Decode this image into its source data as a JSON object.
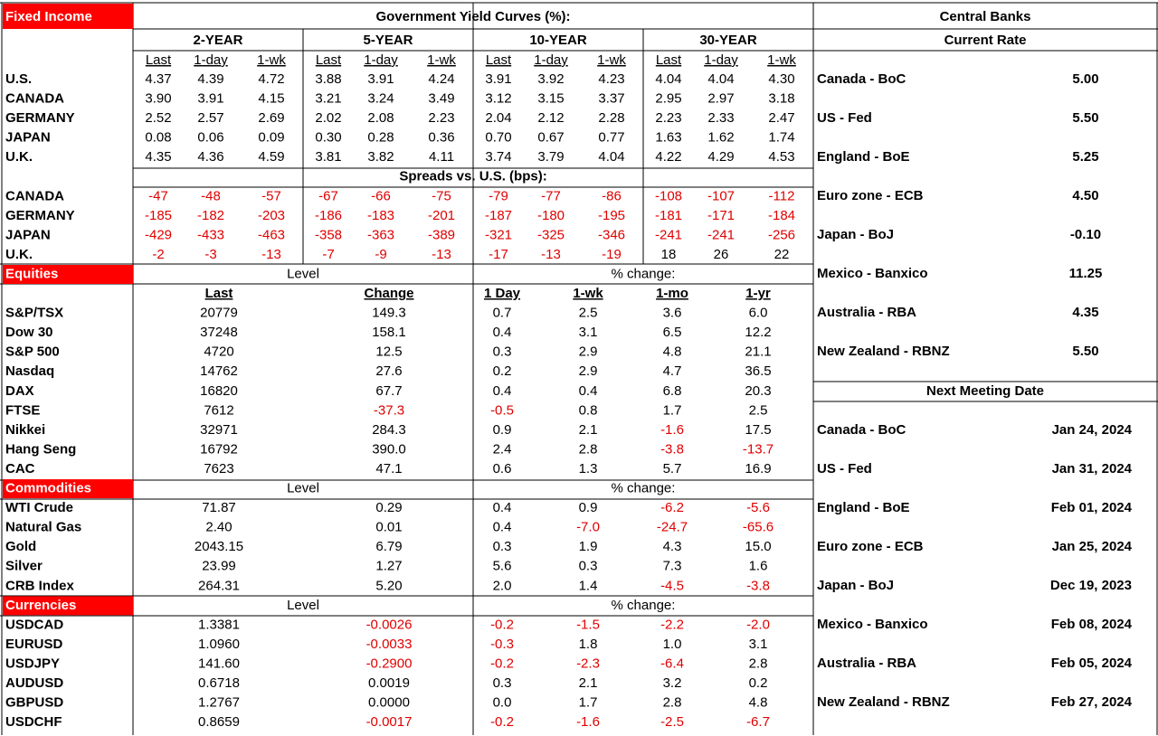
{
  "fixed_income": {
    "title": "Fixed Income",
    "heading": "Government Yield Curves (%):",
    "groups": [
      "2-YEAR",
      "5-YEAR",
      "10-YEAR",
      "30-YEAR"
    ],
    "subheaders": [
      "Last",
      "1-day",
      "1-wk"
    ],
    "rows": [
      {
        "label": "U.S.",
        "values": [
          "4.37",
          "4.39",
          "4.72",
          "3.88",
          "3.91",
          "4.24",
          "3.91",
          "3.92",
          "4.23",
          "4.04",
          "4.04",
          "4.30"
        ]
      },
      {
        "label": "CANADA",
        "values": [
          "3.90",
          "3.91",
          "4.15",
          "3.21",
          "3.24",
          "3.49",
          "3.12",
          "3.15",
          "3.37",
          "2.95",
          "2.97",
          "3.18"
        ]
      },
      {
        "label": "GERMANY",
        "values": [
          "2.52",
          "2.57",
          "2.69",
          "2.02",
          "2.08",
          "2.23",
          "2.04",
          "2.12",
          "2.28",
          "2.23",
          "2.33",
          "2.47"
        ]
      },
      {
        "label": "JAPAN",
        "values": [
          "0.08",
          "0.06",
          "0.09",
          "0.30",
          "0.28",
          "0.36",
          "0.70",
          "0.67",
          "0.77",
          "1.63",
          "1.62",
          "1.74"
        ]
      },
      {
        "label": "U.K.",
        "values": [
          "4.35",
          "4.36",
          "4.59",
          "3.81",
          "3.82",
          "4.11",
          "3.74",
          "3.79",
          "4.04",
          "4.22",
          "4.29",
          "4.53"
        ]
      }
    ],
    "spreads_heading": "Spreads vs. U.S. (bps):",
    "spreads": [
      {
        "label": "CANADA",
        "values": [
          "-47",
          "-48",
          "-57",
          "-67",
          "-66",
          "-75",
          "-79",
          "-77",
          "-86",
          "-108",
          "-107",
          "-112"
        ]
      },
      {
        "label": "GERMANY",
        "values": [
          "-185",
          "-182",
          "-203",
          "-186",
          "-183",
          "-201",
          "-187",
          "-180",
          "-195",
          "-181",
          "-171",
          "-184"
        ]
      },
      {
        "label": "JAPAN",
        "values": [
          "-429",
          "-433",
          "-463",
          "-358",
          "-363",
          "-389",
          "-321",
          "-325",
          "-346",
          "-241",
          "-241",
          "-256"
        ]
      },
      {
        "label": "U.K.",
        "values": [
          "-2",
          "-3",
          "-13",
          "-7",
          "-9",
          "-13",
          "-17",
          "-13",
          "-19",
          "18",
          "26",
          "22"
        ]
      }
    ]
  },
  "equities": {
    "title": "Equities",
    "level_heading": "Level",
    "change_heading": "% change:",
    "columns": [
      "Last",
      "Change",
      "1 Day",
      "1-wk",
      "1-mo",
      "1-yr"
    ],
    "rows": [
      {
        "label": "S&P/TSX",
        "values": [
          "20779",
          "149.3",
          "0.7",
          "2.5",
          "3.6",
          "6.0"
        ]
      },
      {
        "label": "Dow 30",
        "values": [
          "37248",
          "158.1",
          "0.4",
          "3.1",
          "6.5",
          "12.2"
        ]
      },
      {
        "label": "S&P 500",
        "values": [
          "4720",
          "12.5",
          "0.3",
          "2.9",
          "4.8",
          "21.1"
        ]
      },
      {
        "label": "Nasdaq",
        "values": [
          "14762",
          "27.6",
          "0.2",
          "2.9",
          "4.7",
          "36.5"
        ]
      },
      {
        "label": "DAX",
        "values": [
          "16820",
          "67.7",
          "0.4",
          "0.4",
          "6.8",
          "20.3"
        ]
      },
      {
        "label": "FTSE",
        "values": [
          "7612",
          "-37.3",
          "-0.5",
          "0.8",
          "1.7",
          "2.5"
        ]
      },
      {
        "label": "Nikkei",
        "values": [
          "32971",
          "284.3",
          "0.9",
          "2.1",
          "-1.6",
          "17.5"
        ]
      },
      {
        "label": "Hang Seng",
        "values": [
          "16792",
          "390.0",
          "2.4",
          "2.8",
          "-3.8",
          "-13.7"
        ]
      },
      {
        "label": "CAC",
        "values": [
          "7623",
          "47.1",
          "0.6",
          "1.3",
          "5.7",
          "16.9"
        ]
      }
    ]
  },
  "commodities": {
    "title": "Commodities",
    "level_heading": "Level",
    "change_heading": "% change:",
    "rows": [
      {
        "label": "WTI Crude",
        "values": [
          "71.87",
          "0.29",
          "0.4",
          "0.9",
          "-6.2",
          "-5.6"
        ]
      },
      {
        "label": "Natural Gas",
        "values": [
          "2.40",
          "0.01",
          "0.4",
          "-7.0",
          "-24.7",
          "-65.6"
        ]
      },
      {
        "label": "Gold",
        "values": [
          "2043.15",
          "6.79",
          "0.3",
          "1.9",
          "4.3",
          "15.0"
        ]
      },
      {
        "label": "Silver",
        "values": [
          "23.99",
          "1.27",
          "5.6",
          "0.3",
          "7.3",
          "1.6"
        ]
      },
      {
        "label": "CRB Index",
        "values": [
          "264.31",
          "5.20",
          "2.0",
          "1.4",
          "-4.5",
          "-3.8"
        ]
      }
    ]
  },
  "currencies": {
    "title": "Currencies",
    "level_heading": "Level",
    "change_heading": "% change:",
    "rows": [
      {
        "label": "USDCAD",
        "values": [
          "1.3381",
          "-0.0026",
          "-0.2",
          "-1.5",
          "-2.2",
          "-2.0"
        ]
      },
      {
        "label": "EURUSD",
        "values": [
          "1.0960",
          "-0.0033",
          "-0.3",
          "1.8",
          "1.0",
          "3.1"
        ]
      },
      {
        "label": "USDJPY",
        "values": [
          "141.60",
          "-0.2900",
          "-0.2",
          "-2.3",
          "-6.4",
          "2.8"
        ]
      },
      {
        "label": "AUDUSD",
        "values": [
          "0.6718",
          "0.0019",
          "0.3",
          "2.1",
          "3.2",
          "0.2"
        ]
      },
      {
        "label": "GBPUSD",
        "values": [
          "1.2767",
          "0.0000",
          "0.0",
          "1.7",
          "2.8",
          "4.8"
        ]
      },
      {
        "label": "USDCHF",
        "values": [
          "0.8659",
          "-0.0017",
          "-0.2",
          "-1.6",
          "-2.5",
          "-6.7"
        ]
      }
    ]
  },
  "central_banks": {
    "title": "Central Banks",
    "current_rate_heading": "Current Rate",
    "rates": [
      {
        "bank": "Canada - BoC",
        "value": "5.00"
      },
      {
        "bank": "US - Fed",
        "value": "5.50"
      },
      {
        "bank": "England - BoE",
        "value": "5.25"
      },
      {
        "bank": "Euro zone - ECB",
        "value": "4.50"
      },
      {
        "bank": "Japan - BoJ",
        "value": "-0.10"
      },
      {
        "bank": "Mexico - Banxico",
        "value": "11.25"
      },
      {
        "bank": "Australia - RBA",
        "value": "4.35"
      },
      {
        "bank": "New Zealand - RBNZ",
        "value": "5.50"
      }
    ],
    "meeting_heading": "Next Meeting Date",
    "meetings": [
      {
        "bank": "Canada - BoC",
        "date": "Jan 24, 2024"
      },
      {
        "bank": "US - Fed",
        "date": "Jan 31, 2024"
      },
      {
        "bank": "England - BoE",
        "date": "Feb 01, 2024"
      },
      {
        "bank": "Euro zone - ECB",
        "date": "Jan 25, 2024"
      },
      {
        "bank": "Japan - BoJ",
        "date": "Dec 19, 2023"
      },
      {
        "bank": "Mexico - Banxico",
        "date": "Feb 08, 2024"
      },
      {
        "bank": "Australia - RBA",
        "date": "Feb 05, 2024"
      },
      {
        "bank": "New Zealand - RBNZ",
        "date": "Feb 27, 2024"
      }
    ]
  }
}
